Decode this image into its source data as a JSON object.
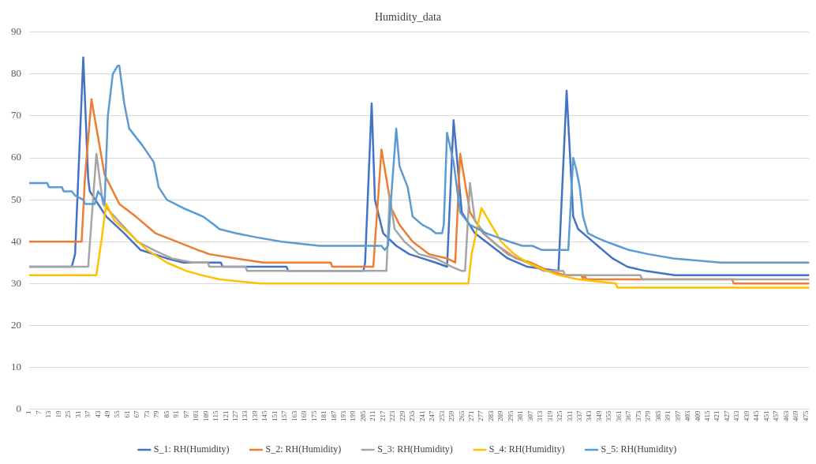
{
  "chart_data": {
    "type": "line",
    "title": "Humidity_data",
    "xlim": [
      1,
      477
    ],
    "xticks": [
      1,
      7,
      13,
      19,
      25,
      31,
      37,
      43,
      49,
      55,
      61,
      67,
      73,
      79,
      85,
      91,
      97,
      103,
      109,
      115,
      121,
      127,
      133,
      139,
      145,
      151,
      157,
      163,
      169,
      175,
      181,
      187,
      193,
      199,
      205,
      211,
      217,
      223,
      229,
      235,
      241,
      247,
      253,
      259,
      265,
      271,
      277,
      283,
      289,
      295,
      301,
      307,
      313,
      319,
      325,
      331,
      337,
      343,
      349,
      355,
      361,
      367,
      373,
      379,
      385,
      391,
      397,
      403,
      409,
      415,
      421,
      427,
      433,
      439,
      445,
      451,
      457,
      463,
      469,
      475
    ],
    "ylim": [
      0,
      90
    ],
    "yticks": [
      0,
      10,
      20,
      30,
      40,
      50,
      60,
      70,
      80,
      90
    ],
    "grid": "y",
    "legend": "bottom",
    "marker": "none",
    "line_style": "solid",
    "series": [
      {
        "name": "S_1: RH(Humidity)",
        "color": "#4472c4",
        "x": [
          1,
          27,
          29,
          34,
          37,
          38,
          48,
          59,
          69,
          85,
          95,
          118,
          119,
          158,
          159,
          205,
          206,
          210,
          212,
          217,
          225,
          233,
          241,
          249,
          256,
          260,
          265,
          273,
          283,
          293,
          305,
          324,
          329,
          333,
          336,
          342,
          348,
          357,
          366,
          377,
          395,
          477
        ],
        "values": [
          34,
          34,
          37,
          84,
          55,
          52,
          46,
          42,
          38,
          36,
          35,
          35,
          34,
          34,
          33,
          33,
          35,
          73,
          50,
          42,
          39,
          37,
          36,
          35,
          34,
          69,
          47,
          42,
          39,
          36,
          34,
          33,
          76,
          46,
          43,
          41,
          39,
          36,
          34,
          33,
          32,
          32
        ]
      },
      {
        "name": "S_2: RH(Humidity)",
        "color": "#ed7d31",
        "x": [
          1,
          33,
          35,
          39,
          47,
          56,
          66,
          78,
          91,
          104,
          111,
          127,
          144,
          185,
          186,
          211,
          216,
          222,
          227,
          235,
          245,
          256,
          261,
          264,
          270,
          278,
          287,
          298,
          307,
          318,
          328,
          338,
          339,
          340,
          341,
          430,
          431,
          477
        ],
        "values": [
          40,
          40,
          55,
          74,
          56,
          49,
          46,
          42,
          40,
          38,
          37,
          36,
          35,
          35,
          34,
          34,
          62,
          48,
          44,
          40,
          37,
          36,
          35,
          61,
          47,
          42,
          39,
          36,
          35,
          33,
          32,
          32,
          31,
          32,
          31,
          31,
          30,
          30
        ]
      },
      {
        "name": "S_3: RH(Humidity)",
        "color": "#a5a5a5",
        "x": [
          1,
          37,
          42,
          46,
          53,
          67,
          77,
          88,
          101,
          110,
          111,
          133,
          134,
          219,
          221,
          224,
          230,
          239,
          249,
          259,
          265,
          267,
          270,
          273,
          281,
          293,
          305,
          315,
          327,
          328,
          374,
          375,
          477
        ],
        "values": [
          34,
          34,
          61,
          49,
          46,
          40,
          38,
          36,
          35,
          35,
          34,
          34,
          33,
          33,
          51,
          43,
          40,
          37,
          36,
          34,
          33,
          33,
          54,
          45,
          41,
          37,
          35,
          33,
          33,
          32,
          32,
          31,
          31
        ]
      },
      {
        "name": "S_4: RH(Humidity)",
        "color": "#ffc000",
        "x": [
          1,
          42,
          45,
          48,
          53,
          62,
          73,
          85,
          97,
          106,
          117,
          142,
          269,
          271,
          277,
          283,
          289,
          297,
          305,
          317,
          324,
          336,
          359,
          360,
          477
        ],
        "values": [
          32,
          32,
          40,
          49,
          45,
          42,
          38,
          35,
          33,
          32,
          31,
          30,
          30,
          37,
          48,
          44,
          40,
          37,
          35,
          33,
          32,
          31,
          30,
          29,
          29
        ]
      },
      {
        "name": "S_5: RH(Humidity)",
        "color": "#5b9bd5",
        "x": [
          1,
          12,
          13,
          21,
          22,
          27,
          29,
          34,
          35,
          41,
          43,
          45,
          47,
          49,
          52,
          55,
          56,
          59,
          62,
          70,
          77,
          80,
          85,
          95,
          107,
          114,
          117,
          127,
          140,
          155,
          178,
          216,
          218,
          220,
          222,
          225,
          227,
          232,
          235,
          241,
          246,
          249,
          253,
          254,
          256,
          260,
          264,
          270,
          280,
          294,
          302,
          308,
          314,
          330,
          333,
          335,
          337,
          339,
          342,
          347,
          353,
          360,
          367,
          379,
          394,
          423,
          477
        ],
        "values": [
          54,
          54,
          53,
          53,
          52,
          52,
          51,
          50,
          49,
          49,
          52,
          51,
          49,
          70,
          80,
          82,
          82,
          73,
          67,
          63,
          59,
          53,
          50,
          48,
          46,
          44,
          43,
          42,
          41,
          40,
          39,
          39,
          38,
          39,
          51,
          67,
          58,
          53,
          46,
          44,
          43,
          42,
          42,
          44,
          66,
          59,
          47,
          44,
          42,
          40,
          39,
          39,
          38,
          38,
          60,
          57,
          53,
          46,
          42,
          41,
          40,
          39,
          38,
          37,
          36,
          35,
          35
        ]
      }
    ]
  }
}
